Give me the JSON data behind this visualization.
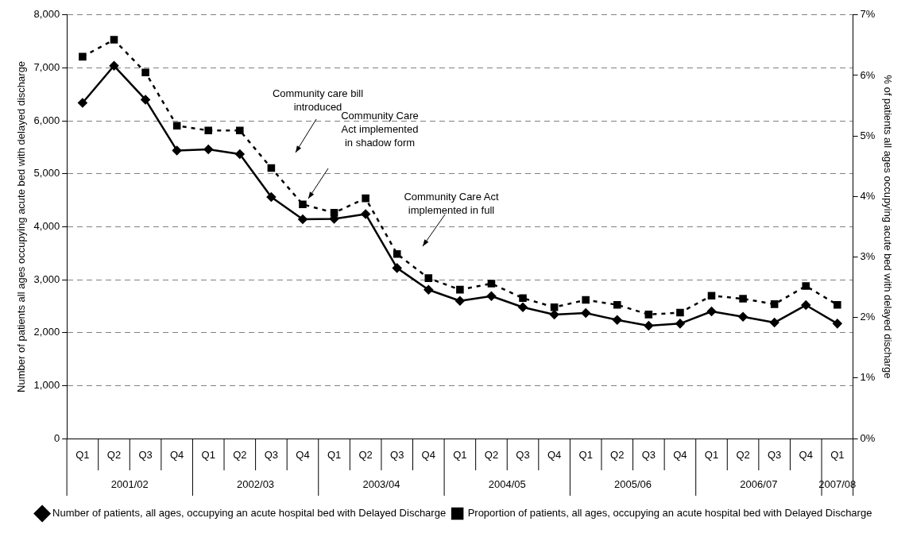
{
  "chart_data": {
    "type": "line",
    "categories": [
      "Q1",
      "Q2",
      "Q3",
      "Q4",
      "Q1",
      "Q2",
      "Q3",
      "Q4",
      "Q1",
      "Q2",
      "Q3",
      "Q4",
      "Q1",
      "Q2",
      "Q3",
      "Q4",
      "Q1",
      "Q2",
      "Q3",
      "Q4",
      "Q1",
      "Q2",
      "Q3",
      "Q4",
      "Q1"
    ],
    "series": [
      {
        "name": "Number of patients, all ages, occupying an acute hospital bed with Delayed Discharge",
        "color": "#000000",
        "marker": "diamond",
        "line_style": "solid",
        "values": [
          6340,
          7040,
          6400,
          5440,
          5460,
          5370,
          4560,
          4140,
          4150,
          4240,
          3220,
          2810,
          2600,
          2690,
          2480,
          2340,
          2370,
          2240,
          2130,
          2170,
          2400,
          2300,
          2190,
          2520,
          2170
        ]
      },
      {
        "name": "Proportion of patients, all ages, occupying an acute hospital bed with Delayed Discharge",
        "color": "#000000",
        "marker": "square",
        "line_style": "dashed",
        "axis": "y2",
        "values": [
          6.31,
          6.59,
          6.05,
          5.17,
          5.09,
          5.09,
          4.47,
          3.87,
          3.73,
          3.97,
          3.05,
          2.65,
          2.46,
          2.56,
          2.32,
          2.17,
          2.29,
          2.21,
          2.05,
          2.08,
          2.36,
          2.31,
          2.22,
          2.52,
          2.21
        ]
      }
    ],
    "ylabel": "Number of patients all ages occupying acute bed with delayed discharge",
    "y2label": "% of patients all ages occupying acute bed with delayed discharge",
    "ylim": [
      0,
      8000
    ],
    "yticks": [
      0,
      {
        "value": 1000,
        "label": "1,000"
      },
      {
        "value": 2000,
        "label": "2,000"
      },
      {
        "value": 3000,
        "label": "3,000"
      },
      {
        "value": 4000,
        "label": "4,000"
      },
      {
        "value": 5000,
        "label": "5,000"
      },
      {
        "value": 6000,
        "label": "6,000"
      },
      {
        "value": 7000,
        "label": "7,000"
      },
      {
        "value": 8000,
        "label": "8,000"
      }
    ],
    "y2lim": [
      0,
      7
    ],
    "y2ticks": [
      {
        "value": 0,
        "label": "0%"
      },
      {
        "value": 1,
        "label": "1%"
      },
      {
        "value": 2,
        "label": "2%"
      },
      {
        "value": 3,
        "label": "3%"
      },
      {
        "value": 4,
        "label": "4%"
      },
      {
        "value": 5,
        "label": "5%"
      },
      {
        "value": 6,
        "label": "6%"
      },
      {
        "value": 7,
        "label": "7%"
      }
    ],
    "grid": "y",
    "legend": "bottom",
    "annotations": [
      "Community care bill\nintroduced",
      "Community Care\nAct implemented\nin shadow form",
      "Community Care Act\nimplemented in full",
      "2001/02",
      "2002/03",
      "2003/04",
      "2004/05",
      "2005/06",
      "2006/07",
      "2007/08"
    ]
  }
}
